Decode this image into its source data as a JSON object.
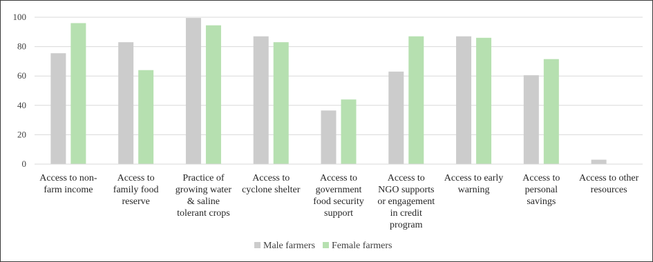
{
  "chart_data": {
    "type": "bar",
    "title": "",
    "xlabel": "",
    "ylabel": "",
    "ylim": [
      0,
      100
    ],
    "yticks": [
      0,
      20,
      40,
      60,
      80,
      100
    ],
    "grid": true,
    "legend_position": "bottom",
    "categories": [
      [
        "Access to non-",
        "farm income"
      ],
      [
        "Access to",
        "family food",
        "reserve"
      ],
      [
        "Practice of",
        "growing water",
        "& saline",
        "tolerant crops"
      ],
      [
        "Access to",
        "cyclone shelter"
      ],
      [
        "Access to",
        "government",
        "food security",
        "support"
      ],
      [
        "Access to",
        "NGO supports",
        "or engagement",
        "in credit",
        "program"
      ],
      [
        "Access to early",
        "warning"
      ],
      [
        "Access to",
        "personal",
        "savings"
      ],
      [
        "Access to other",
        "resources"
      ]
    ],
    "series": [
      {
        "name": "Male farmers",
        "color": "#cccccc",
        "values": [
          75.5,
          83,
          99.5,
          87,
          36.5,
          63,
          87,
          60.5,
          3
        ]
      },
      {
        "name": "Female farmers",
        "color": "#b6e0b0",
        "values": [
          96,
          64,
          94.5,
          83,
          44,
          87,
          86,
          71.5,
          0
        ]
      }
    ]
  }
}
